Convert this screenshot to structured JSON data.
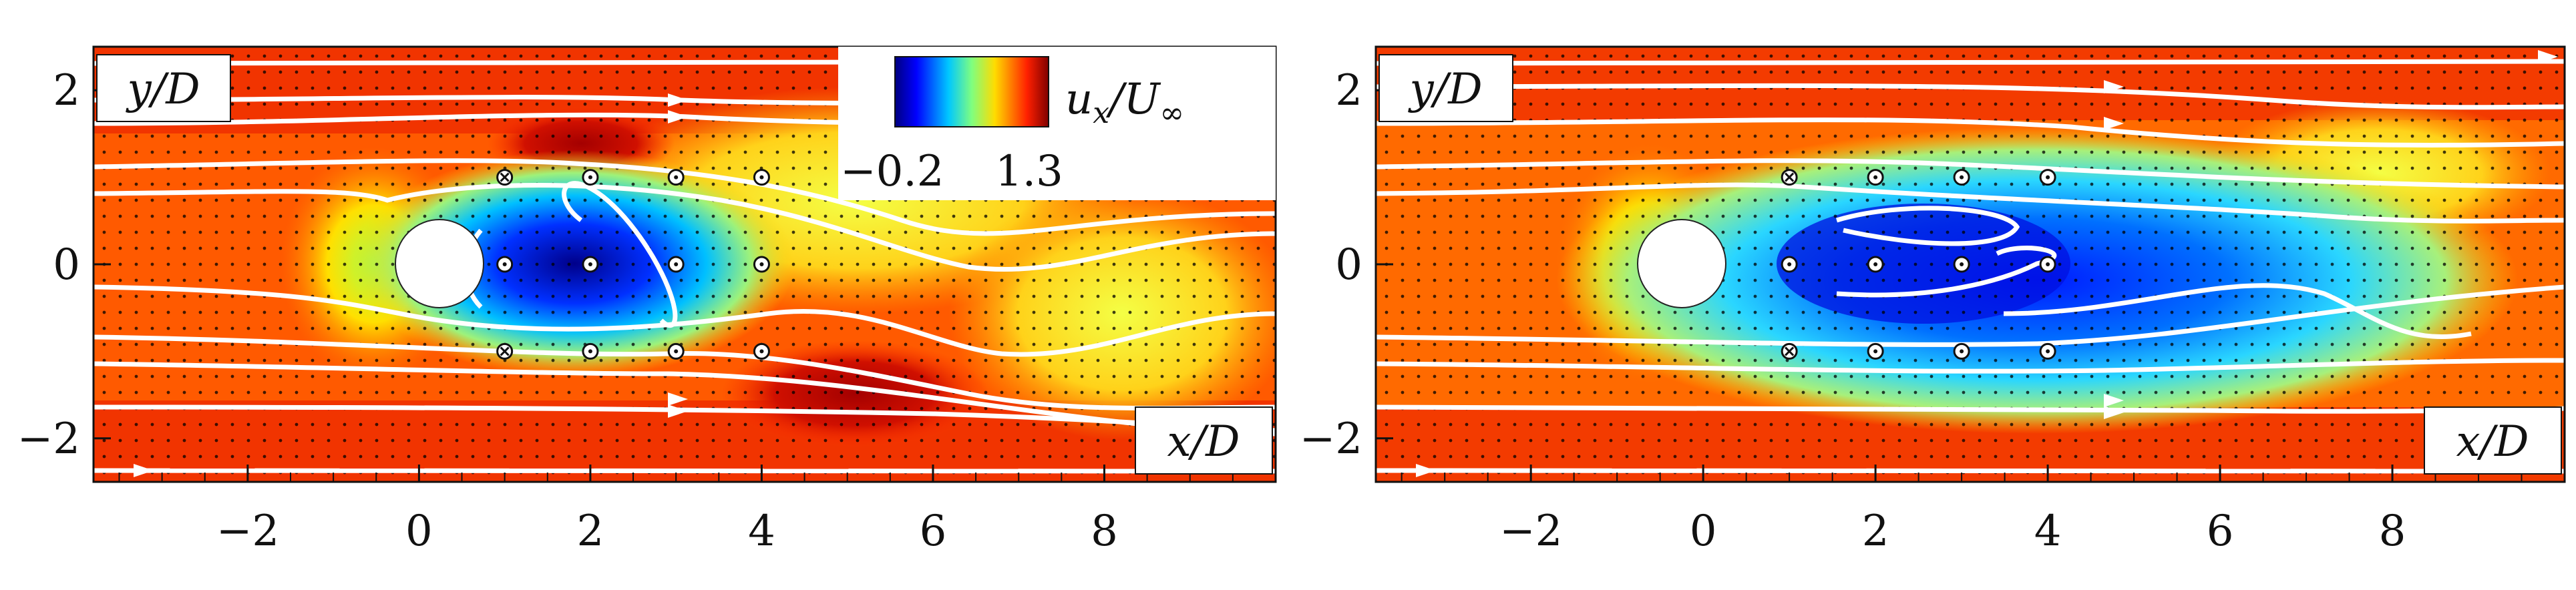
{
  "chart_data": [
    {
      "type": "heatmap",
      "panel": "left",
      "xlabel": "x/D",
      "ylabel": "y/D",
      "xlim": [
        -3.8,
        10
      ],
      "ylim": [
        -2.5,
        2.5
      ],
      "xticks": [
        -2,
        0,
        2,
        4,
        6,
        8
      ],
      "xtick_labels": [
        "−2",
        "0",
        "2",
        "4",
        "6",
        "8"
      ],
      "yticks": [
        2,
        0,
        -2
      ],
      "ytick_labels": [
        "2",
        "0",
        "−2"
      ],
      "colorbar": {
        "label": "u_x/U_∞",
        "min_label": "−0.2",
        "max_label": "1.3",
        "range": [
          -0.2,
          1.3
        ]
      },
      "cylinder": {
        "center": [
          0,
          0
        ],
        "diameter": 1
      },
      "sensors": [
        {
          "x": 1,
          "y": 1,
          "kind": "cross"
        },
        {
          "x": 1,
          "y": 0,
          "kind": "circle"
        },
        {
          "x": 1,
          "y": -1,
          "kind": "cross"
        },
        {
          "x": 2,
          "y": 1,
          "kind": "circle"
        },
        {
          "x": 2,
          "y": 0,
          "kind": "circle"
        },
        {
          "x": 2,
          "y": -1,
          "kind": "circle"
        },
        {
          "x": 3,
          "y": 1,
          "kind": "circle"
        },
        {
          "x": 3,
          "y": 0,
          "kind": "circle"
        },
        {
          "x": 3,
          "y": -1,
          "kind": "circle"
        },
        {
          "x": 4,
          "y": 1,
          "kind": "circle"
        },
        {
          "x": 4,
          "y": 0,
          "kind": "circle"
        },
        {
          "x": 4,
          "y": -1,
          "kind": "circle"
        }
      ]
    },
    {
      "type": "heatmap",
      "panel": "right",
      "xlabel": "x/D",
      "ylabel": "y/D",
      "xlim": [
        -3.8,
        10
      ],
      "ylim": [
        -2.5,
        2.5
      ],
      "xticks": [
        -2,
        0,
        2,
        4,
        6,
        8
      ],
      "xtick_labels": [
        "−2",
        "0",
        "2",
        "4",
        "6",
        "8"
      ],
      "yticks": [
        2,
        0,
        -2
      ],
      "ytick_labels": [
        "2",
        "0",
        "−2"
      ],
      "cylinder": {
        "center": [
          0,
          0
        ],
        "diameter": 1
      },
      "sensors": [
        {
          "x": 1,
          "y": 1,
          "kind": "cross"
        },
        {
          "x": 1,
          "y": 0,
          "kind": "circle"
        },
        {
          "x": 1,
          "y": -1,
          "kind": "cross"
        },
        {
          "x": 2,
          "y": 1,
          "kind": "circle"
        },
        {
          "x": 2,
          "y": 0,
          "kind": "circle"
        },
        {
          "x": 2,
          "y": -1,
          "kind": "circle"
        },
        {
          "x": 3,
          "y": 1,
          "kind": "circle"
        },
        {
          "x": 3,
          "y": 0,
          "kind": "circle"
        },
        {
          "x": 3,
          "y": -1,
          "kind": "circle"
        },
        {
          "x": 4,
          "y": 1,
          "kind": "circle"
        },
        {
          "x": 4,
          "y": 0,
          "kind": "circle"
        },
        {
          "x": 4,
          "y": -1,
          "kind": "circle"
        }
      ]
    }
  ]
}
